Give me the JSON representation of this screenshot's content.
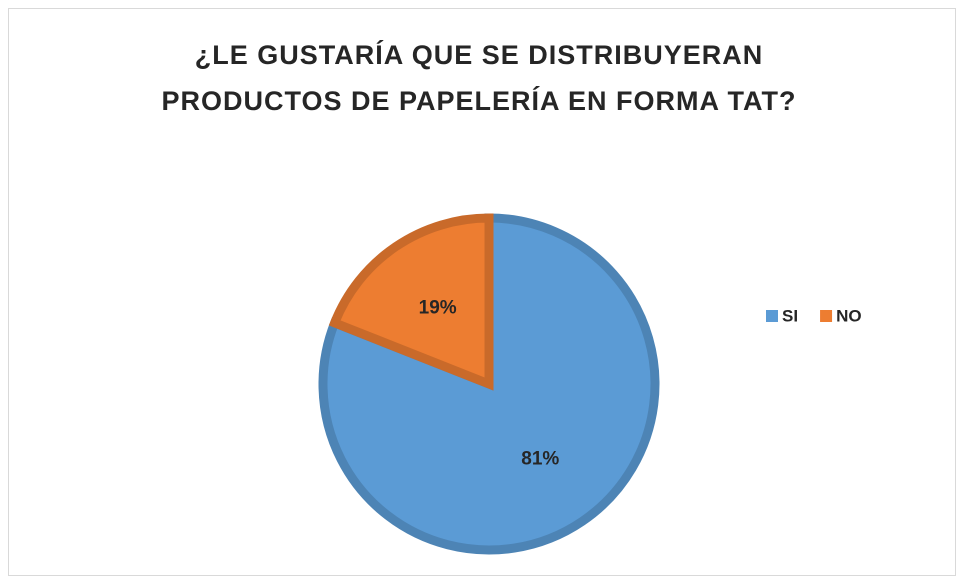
{
  "chart_data": {
    "type": "pie",
    "title": "¿LE GUSTARÍA QUE SE DISTRIBUYERAN PRODUCTOS DE PAPELERÍA EN FORMA TAT?",
    "categories": [
      "SI",
      "NO"
    ],
    "values": [
      81,
      19
    ],
    "value_labels": [
      "81%",
      "19%"
    ],
    "colors": [
      "#5b9bd5",
      "#ed7d31"
    ],
    "legend": "right"
  }
}
